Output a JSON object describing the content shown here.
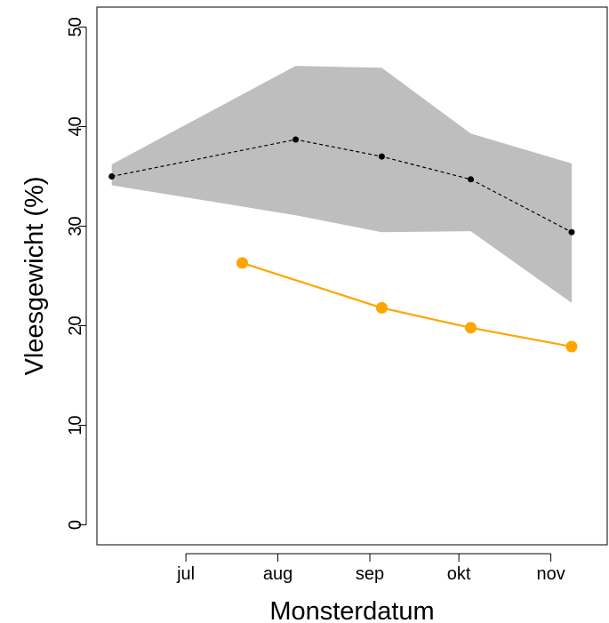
{
  "chart_data": {
    "type": "line",
    "title": "",
    "xlabel": "Monsterdatum",
    "ylabel": "Vleesgewicht (%)",
    "x_ticks": [
      "jul",
      "aug",
      "sep",
      "okt",
      "nov"
    ],
    "x_tick_dates": [
      "2000-07-01",
      "2000-08-01",
      "2000-09-01",
      "2000-10-01",
      "2000-11-01"
    ],
    "xlim": [
      "2000-06-01",
      "2000-11-20"
    ],
    "ylim": [
      -2,
      52
    ],
    "y_ticks": [
      0,
      10,
      20,
      30,
      40,
      50
    ],
    "grid": false,
    "band": {
      "color": "#bebebe",
      "x": [
        "2000-06-06",
        "2000-08-07",
        "2000-09-05",
        "2000-10-05",
        "2000-11-08"
      ],
      "upper": [
        36.2,
        46.1,
        45.9,
        39.3,
        36.3
      ],
      "lower": [
        34.1,
        31.1,
        29.4,
        29.5,
        22.3
      ]
    },
    "series": [
      {
        "color": "#000000",
        "style": "dashed",
        "marker": "small-dot",
        "x": [
          "2000-06-06",
          "2000-08-07",
          "2000-09-05",
          "2000-10-05",
          "2000-11-08"
        ],
        "values": [
          35.0,
          38.7,
          37.0,
          34.7,
          29.4
        ]
      },
      {
        "color": "#ffa500",
        "style": "solid",
        "marker": "large-dot",
        "x": [
          "2000-07-20",
          "2000-09-05",
          "2000-10-05",
          "2000-11-08"
        ],
        "values": [
          26.3,
          21.8,
          19.8,
          17.9
        ]
      }
    ]
  }
}
